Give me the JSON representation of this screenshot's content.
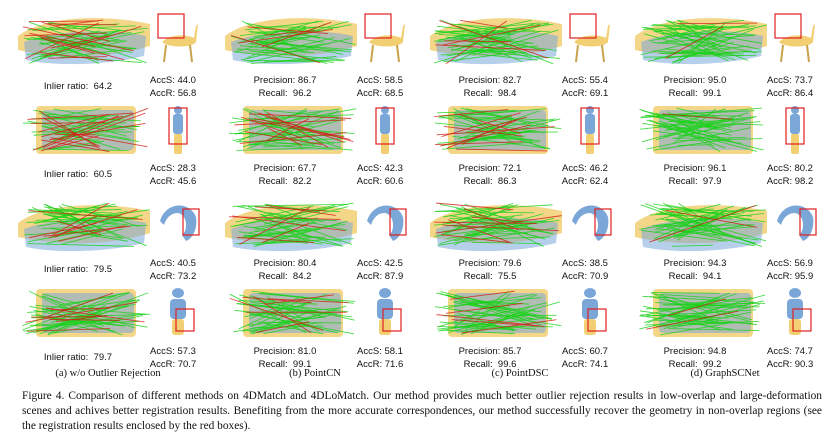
{
  "columns": [
    {
      "label": "(a) w/o Outlier Rejection"
    },
    {
      "label": "(b) PointCN"
    },
    {
      "label": "(c) PointDSC"
    },
    {
      "label": "(d) GraphSCNet"
    }
  ],
  "rows": [
    {
      "shape": "deer",
      "cells": [
        {
          "inlier_label": "Inlier ratio:",
          "inlier": "64.2",
          "accs": "44.0",
          "accr": "56.8",
          "inlier_frac": 0.642
        },
        {
          "precision": "86.7",
          "recall": "96.2",
          "accs": "58.5",
          "accr": "68.5",
          "inlier_frac": 0.867
        },
        {
          "precision": "82.7",
          "recall": "98.4",
          "accs": "55.4",
          "accr": "69.1",
          "inlier_frac": 0.827
        },
        {
          "precision": "95.0",
          "recall": "99.1",
          "accs": "73.7",
          "accr": "86.4",
          "inlier_frac": 0.95
        }
      ]
    },
    {
      "shape": "human",
      "cells": [
        {
          "inlier_label": "Inlier ratio:",
          "inlier": "60.5",
          "accs": "28.3",
          "accr": "45.6",
          "inlier_frac": 0.605
        },
        {
          "precision": "67.7",
          "recall": "82.2",
          "accs": "42.3",
          "accr": "60.6",
          "inlier_frac": 0.677
        },
        {
          "precision": "72.1",
          "recall": "86.3",
          "accs": "46.2",
          "accr": "62.4",
          "inlier_frac": 0.721
        },
        {
          "precision": "96.1",
          "recall": "97.9",
          "accs": "80.2",
          "accr": "98.2",
          "inlier_frac": 0.961
        }
      ]
    },
    {
      "shape": "curled",
      "cells": [
        {
          "inlier_label": "Inlier ratio:",
          "inlier": "79.5",
          "accs": "40.5",
          "accr": "73.2",
          "inlier_frac": 0.795
        },
        {
          "precision": "80.4",
          "recall": "84.2",
          "accs": "42.5",
          "accr": "87.9",
          "inlier_frac": 0.804
        },
        {
          "precision": "79.6",
          "recall": "75.5",
          "accs": "38.5",
          "accr": "70.9",
          "inlier_frac": 0.796
        },
        {
          "precision": "94.3",
          "recall": "94.1",
          "accs": "56.9",
          "accr": "95.9",
          "inlier_frac": 0.943
        }
      ]
    },
    {
      "shape": "figure",
      "cells": [
        {
          "inlier_label": "Inlier ratio:",
          "inlier": "79.7",
          "accs": "57.3",
          "accr": "70.7",
          "inlier_frac": 0.797
        },
        {
          "precision": "81.0",
          "recall": "99.1",
          "accs": "58.1",
          "accr": "71.6",
          "inlier_frac": 0.81
        },
        {
          "precision": "85.7",
          "recall": "99.6",
          "accs": "60.7",
          "accr": "74.1",
          "inlier_frac": 0.857
        },
        {
          "precision": "94.8",
          "recall": "99.2",
          "accs": "74.7",
          "accr": "90.3",
          "inlier_frac": 0.948
        }
      ]
    }
  ],
  "labels": {
    "precision": "Precision:",
    "recall": "Recall:",
    "accs": "AccS:",
    "accr": "AccR:"
  },
  "caption": "Figure 4. Comparison of different methods on 4DMatch and 4DLoMatch. Our method provides much better outlier rejection results in low-overlap and large-deformation scenes and achives better registration results. Benefiting from the more accurate correspondences, our method successfully recover the geometry in non-overlap regions (see the registration results enclosed by the red boxes).",
  "colors": {
    "inlier": "#19d219",
    "outlier": "#d21e14",
    "shape_source": "#f2cf73",
    "shape_target": "#7aa7d8",
    "box": "#e02020"
  }
}
